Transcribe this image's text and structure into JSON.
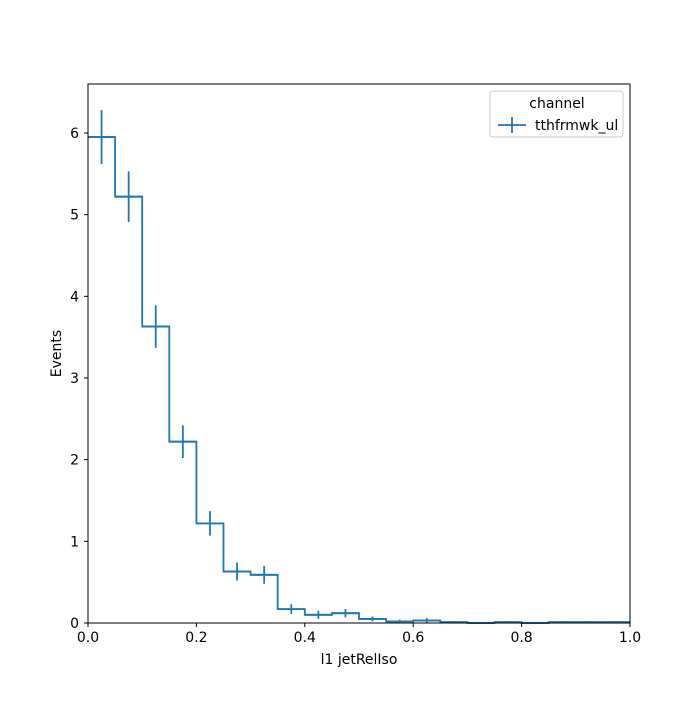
{
  "chart_data": {
    "type": "histogram",
    "xlabel": "l1 jetRelIso",
    "ylabel": "Events",
    "xlim": [
      0.0,
      1.0
    ],
    "ylim": [
      0.0,
      6.6
    ],
    "x_ticks": [
      0.0,
      0.2,
      0.4,
      0.6,
      0.8,
      1.0
    ],
    "x_tick_labels": [
      "0.0",
      "0.2",
      "0.4",
      "0.6",
      "0.8",
      "1.0"
    ],
    "y_ticks": [
      0,
      1,
      2,
      3,
      4,
      5,
      6
    ],
    "y_tick_labels": [
      "0",
      "1",
      "2",
      "3",
      "4",
      "5",
      "6"
    ],
    "grid": false,
    "legend": {
      "title": "channel",
      "placement": "top-right"
    },
    "bin_edges": [
      0.0,
      0.05,
      0.1,
      0.15,
      0.2,
      0.25,
      0.3,
      0.35,
      0.4,
      0.45,
      0.5,
      0.55,
      0.6,
      0.65,
      0.7,
      0.75,
      0.8,
      0.85,
      0.9,
      0.95,
      1.0
    ],
    "series": [
      {
        "name": "tthfrmwk_ul",
        "color": "#1f77b4",
        "values": [
          5.95,
          5.22,
          3.63,
          2.22,
          1.22,
          0.63,
          0.59,
          0.17,
          0.1,
          0.12,
          0.05,
          0.02,
          0.03,
          0.01,
          0.0,
          0.01,
          0.0,
          0.01,
          0.01,
          0.01
        ],
        "errors": [
          0.33,
          0.31,
          0.26,
          0.2,
          0.15,
          0.11,
          0.11,
          0.06,
          0.05,
          0.05,
          0.03,
          0.02,
          0.03,
          0.01,
          0.0,
          0.01,
          0.0,
          0.01,
          0.01,
          0.01
        ]
      }
    ]
  }
}
